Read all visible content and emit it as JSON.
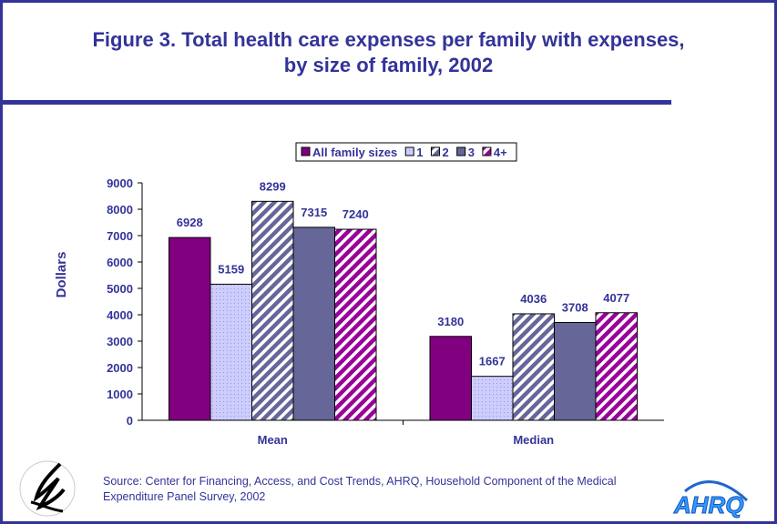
{
  "title_line1": "Figure 3. Total health care expenses per family with expenses,",
  "title_line2": "by size of family, 2002",
  "source": "Source: Center for Financing, Access, and Cost Trends, AHRQ, Household Component of the Medical Expenditure Panel Survey, 2002",
  "logos": {
    "hhs": "Department of Health & Human Services - USA",
    "ahrq": "AHRQ"
  },
  "chart_data": {
    "type": "bar",
    "title": "Figure 3. Total health care expenses per family with expenses, by size of family, 2002",
    "xlabel": "",
    "ylabel": "Dollars",
    "ylim": [
      0,
      9000
    ],
    "yticks": [
      0,
      1000,
      2000,
      3000,
      4000,
      5000,
      6000,
      7000,
      8000,
      9000
    ],
    "grid": false,
    "legend_position": "top",
    "categories": [
      "Mean",
      "Median"
    ],
    "series": [
      {
        "name": "All family sizes",
        "values": [
          6928,
          3180
        ],
        "color": "#800080",
        "pattern": "solid"
      },
      {
        "name": "1",
        "values": [
          5159,
          1667
        ],
        "color": "#ccccff",
        "pattern": "dots"
      },
      {
        "name": "2",
        "values": [
          8299,
          4036
        ],
        "color": "#666699",
        "pattern": "stripes"
      },
      {
        "name": "3",
        "values": [
          7315,
          3708
        ],
        "color": "#666699",
        "pattern": "solid"
      },
      {
        "name": "4+",
        "values": [
          7240,
          4077
        ],
        "color": "#990099",
        "pattern": "stripes"
      }
    ]
  }
}
